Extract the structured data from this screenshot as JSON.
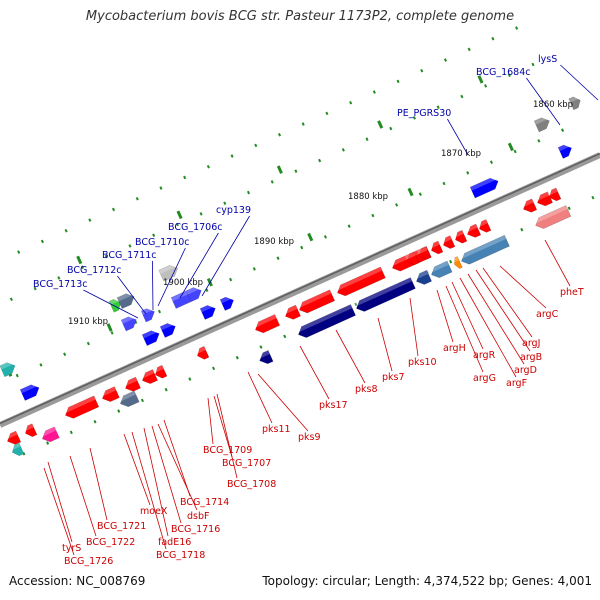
{
  "title": "Mycobacterium bovis BCG str. Pasteur 1173P2, complete genome",
  "accession": "Accession: NC_008769",
  "topology": "Topology: circular; Length: 4,374,522 bp; Genes: 4,001",
  "colors": {
    "forward_gene": "#0000ff",
    "reverse_gene": "#ff0000",
    "forward_label": "#0000aa",
    "reverse_label": "#cc0000",
    "backbone": "#808080",
    "tick_green": "#228b22"
  },
  "kbp_ticks": [
    "1860 kbp",
    "1870 kbp",
    "1880 kbp",
    "1890 kbp",
    "1900 kbp",
    "1910 kbp"
  ],
  "forward_labels": [
    "lysS",
    "BCG_1684c",
    "PE_PGRS30",
    "cyp139",
    "BCG_1706c",
    "BCG_1710c",
    "BCG_1711c",
    "BCG_1712c",
    "BCG_1713c"
  ],
  "reverse_labels": [
    "pheT",
    "argC",
    "argJ",
    "argB",
    "argD",
    "argF",
    "argR",
    "argG",
    "argH",
    "pks10",
    "pks7",
    "pks8",
    "pks17",
    "pks9",
    "pks11",
    "BCG_1707",
    "BCG_1708",
    "BCG_1709",
    "BCG_1714",
    "dsbF",
    "BCG_1716",
    "moeX",
    "fadE16",
    "BCG_1718",
    "BCG_1721",
    "BCG_1722",
    "tyrS",
    "BCG_1726"
  ]
}
